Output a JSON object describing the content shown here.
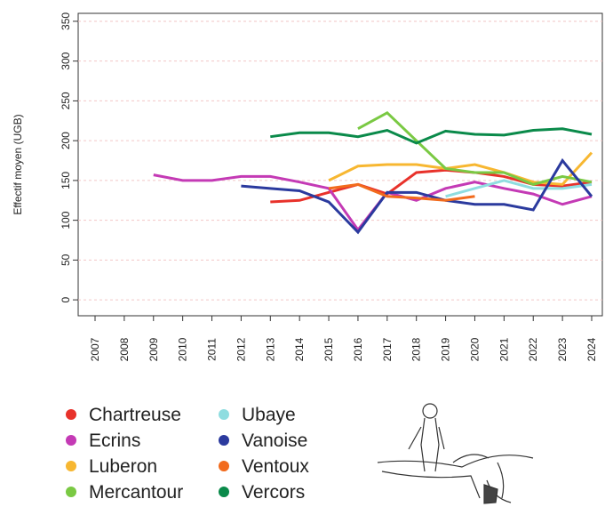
{
  "chart_data": {
    "type": "line",
    "y_label": "Effectif moyen (UGB)",
    "categories": [
      "2007",
      "2008",
      "2009",
      "2010",
      "2011",
      "2012",
      "2013",
      "2014",
      "2015",
      "2016",
      "2017",
      "2018",
      "2019",
      "2020",
      "2021",
      "2022",
      "2023",
      "2024"
    ],
    "ylim": [
      -20,
      360
    ],
    "yticks": [
      0,
      50,
      100,
      150,
      200,
      250,
      300,
      350
    ],
    "grid": true,
    "series": [
      {
        "name": "Chartreuse",
        "color": "#e8322b",
        "values": [
          null,
          null,
          null,
          null,
          null,
          null,
          123,
          125,
          135,
          145,
          133,
          160,
          163,
          160,
          155,
          145,
          143,
          148
        ]
      },
      {
        "name": "Ecrins",
        "color": "#c43ab5",
        "values": [
          null,
          null,
          157,
          150,
          150,
          155,
          155,
          148,
          140,
          88,
          135,
          125,
          140,
          148,
          140,
          133,
          120,
          130
        ]
      },
      {
        "name": "Luberon",
        "color": "#f7b731",
        "values": [
          null,
          null,
          null,
          null,
          null,
          null,
          null,
          null,
          150,
          168,
          170,
          170,
          165,
          170,
          160,
          148,
          145,
          185
        ]
      },
      {
        "name": "Mercantour",
        "color": "#7ac943",
        "values": [
          null,
          null,
          null,
          null,
          null,
          null,
          null,
          null,
          null,
          215,
          235,
          200,
          165,
          160,
          160,
          145,
          155,
          148
        ]
      },
      {
        "name": "Ubaye",
        "color": "#8fdde0",
        "values": [
          null,
          null,
          null,
          null,
          null,
          null,
          null,
          null,
          null,
          null,
          null,
          null,
          130,
          140,
          150,
          140,
          140,
          145
        ]
      },
      {
        "name": "Vanoise",
        "color": "#2b3a9e",
        "values": [
          null,
          null,
          null,
          null,
          null,
          143,
          140,
          137,
          123,
          85,
          135,
          135,
          125,
          120,
          120,
          113,
          175,
          130
        ]
      },
      {
        "name": "Ventoux",
        "color": "#f26b1d",
        "values": [
          null,
          null,
          null,
          null,
          null,
          null,
          null,
          null,
          140,
          145,
          130,
          128,
          125,
          130,
          null,
          null,
          null,
          null
        ]
      },
      {
        "name": "Vercors",
        "color": "#0a8a4a",
        "values": [
          null,
          null,
          null,
          null,
          null,
          null,
          205,
          210,
          210,
          205,
          213,
          197,
          212,
          208,
          207,
          213,
          215,
          208
        ]
      }
    ]
  }
}
